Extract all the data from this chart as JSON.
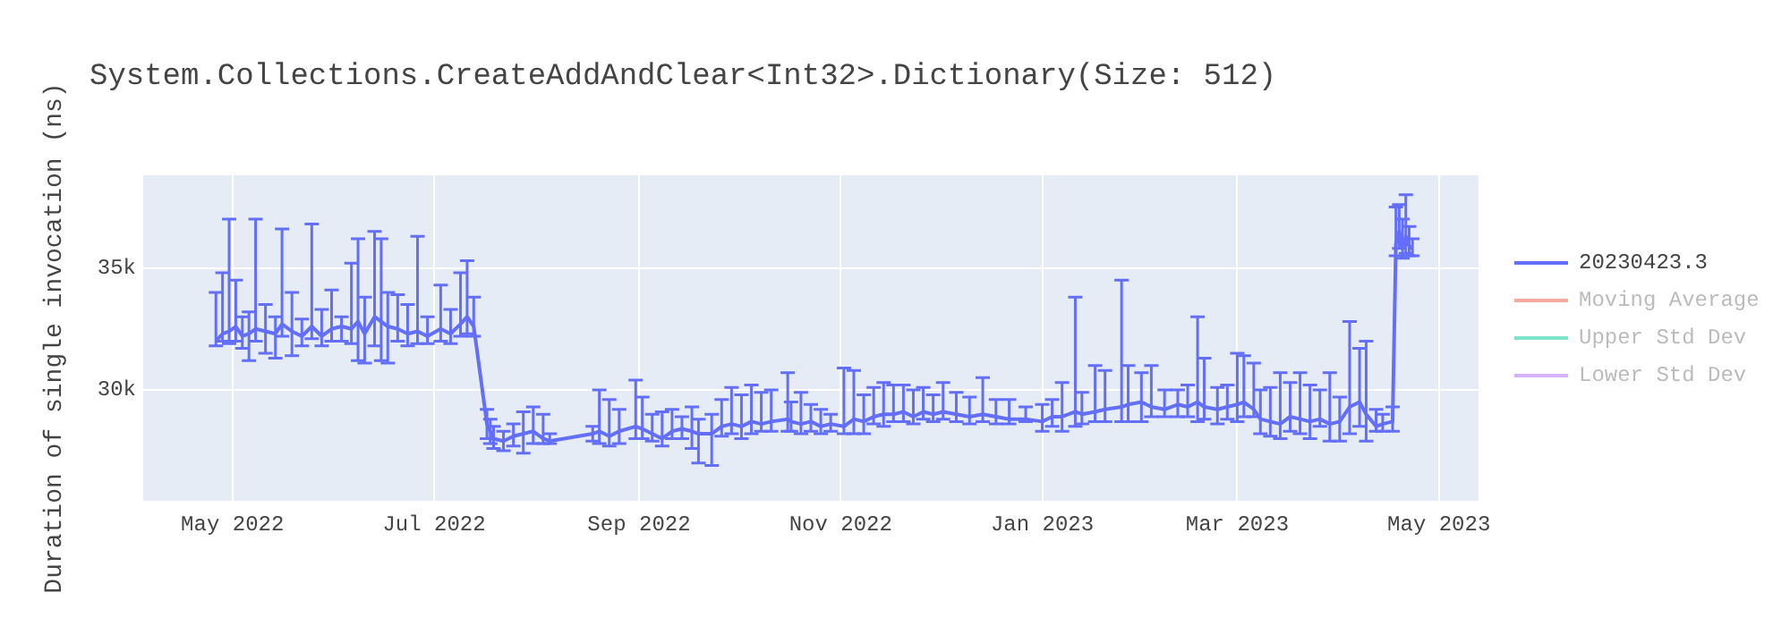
{
  "chart_data": {
    "type": "line",
    "title": "System.Collections.CreateAddAndClear<Int32>.Dictionary(Size: 512)",
    "ylabel": "Duration of single invocation (ns)",
    "xlim": [
      "2022-04-04",
      "2023-05-13"
    ],
    "xticks": [
      {
        "value": "2022-05-01",
        "label": "May 2022"
      },
      {
        "value": "2022-07-01",
        "label": "Jul 2022"
      },
      {
        "value": "2022-09-01",
        "label": "Sep 2022"
      },
      {
        "value": "2022-11-01",
        "label": "Nov 2022"
      },
      {
        "value": "2023-01-01",
        "label": "Jan 2023"
      },
      {
        "value": "2023-03-01",
        "label": "Mar 2023"
      },
      {
        "value": "2023-05-01",
        "label": "May 2023"
      }
    ],
    "ylim": [
      25450,
      38800
    ],
    "yticks": [
      {
        "value": 30000,
        "label": "30k"
      },
      {
        "value": 35000,
        "label": "35k"
      }
    ],
    "grid": true,
    "legend": "right",
    "x": [
      "2022-04-26",
      "2022-04-28",
      "2022-04-30",
      "2022-05-02",
      "2022-05-04",
      "2022-05-06",
      "2022-05-08",
      "2022-05-11",
      "2022-05-14",
      "2022-05-16",
      "2022-05-19",
      "2022-05-22",
      "2022-05-25",
      "2022-05-28",
      "2022-05-31",
      "2022-06-03",
      "2022-06-06",
      "2022-06-08",
      "2022-06-10",
      "2022-06-13",
      "2022-06-15",
      "2022-06-17",
      "2022-06-20",
      "2022-06-23",
      "2022-06-26",
      "2022-06-29",
      "2022-07-03",
      "2022-07-06",
      "2022-07-09",
      "2022-07-11",
      "2022-07-13",
      "2022-07-17",
      "2022-07-18",
      "2022-07-19",
      "2022-07-22",
      "2022-07-25",
      "2022-07-28",
      "2022-07-31",
      "2022-08-03",
      "2022-08-05",
      "2022-08-18",
      "2022-08-20",
      "2022-08-23",
      "2022-08-26",
      "2022-08-31",
      "2022-09-02",
      "2022-09-05",
      "2022-09-08",
      "2022-09-11",
      "2022-09-14",
      "2022-09-17",
      "2022-09-19",
      "2022-09-23",
      "2022-09-26",
      "2022-09-29",
      "2022-10-02",
      "2022-10-05",
      "2022-10-08",
      "2022-10-11",
      "2022-10-16",
      "2022-10-17",
      "2022-10-20",
      "2022-10-23",
      "2022-10-26",
      "2022-10-29",
      "2022-11-02",
      "2022-11-05",
      "2022-11-08",
      "2022-11-11",
      "2022-11-14",
      "2022-11-17",
      "2022-11-20",
      "2022-11-23",
      "2022-11-26",
      "2022-11-29",
      "2022-12-02",
      "2022-12-06",
      "2022-12-10",
      "2022-12-14",
      "2022-12-18",
      "2022-12-22",
      "2022-12-27",
      "2023-01-01",
      "2023-01-04",
      "2023-01-07",
      "2023-01-11",
      "2023-01-13",
      "2023-01-17",
      "2023-01-20",
      "2023-01-25",
      "2023-01-27",
      "2023-01-31",
      "2023-02-03",
      "2023-02-07",
      "2023-02-11",
      "2023-02-14",
      "2023-02-17",
      "2023-02-19",
      "2023-02-23",
      "2023-02-26",
      "2023-03-01",
      "2023-03-03",
      "2023-03-06",
      "2023-03-08",
      "2023-03-11",
      "2023-03-14",
      "2023-03-17",
      "2023-03-20",
      "2023-03-23",
      "2023-03-26",
      "2023-03-29",
      "2023-04-01",
      "2023-04-04",
      "2023-04-07",
      "2023-04-09",
      "2023-04-12",
      "2023-04-14",
      "2023-04-17",
      "2023-04-18",
      "2023-04-19",
      "2023-04-20",
      "2023-04-21",
      "2023-04-22",
      "2023-04-23"
    ],
    "series": [
      {
        "name": "20230423.3",
        "color": "#636efa",
        "values": [
          32000,
          32300,
          32400,
          32600,
          32200,
          32300,
          32500,
          32400,
          32300,
          32700,
          32400,
          32200,
          32600,
          32200,
          32500,
          32600,
          32500,
          32800,
          32300,
          33000,
          32800,
          32600,
          32500,
          32300,
          32400,
          32200,
          32500,
          32300,
          32700,
          33000,
          32600,
          28600,
          28300,
          28000,
          27900,
          28100,
          28200,
          28300,
          28000,
          27900,
          28200,
          28300,
          28100,
          28300,
          28500,
          28400,
          28200,
          28000,
          28300,
          28400,
          28300,
          28200,
          28200,
          28500,
          28600,
          28500,
          28700,
          28600,
          28700,
          28800,
          28700,
          28600,
          28700,
          28500,
          28600,
          28500,
          28800,
          28700,
          28900,
          29000,
          29000,
          29100,
          28900,
          29100,
          29000,
          29100,
          29000,
          28900,
          29000,
          28900,
          28800,
          28800,
          28700,
          28900,
          28900,
          29100,
          29000,
          29100,
          29200,
          29300,
          29400,
          29500,
          29300,
          29200,
          29400,
          29300,
          29500,
          29300,
          29200,
          29300,
          29400,
          29500,
          29200,
          28800,
          28700,
          28600,
          28900,
          28800,
          28700,
          28800,
          28600,
          28700,
          29300,
          29500,
          29000,
          28500,
          28600,
          28700,
          36000,
          36500,
          35800,
          36300,
          35900,
          35800
        ],
        "errors": [
          [
            31800,
            34000
          ],
          [
            32000,
            34800
          ],
          [
            31900,
            37000
          ],
          [
            32000,
            34500
          ],
          [
            31700,
            33000
          ],
          [
            31200,
            33200
          ],
          [
            32000,
            37000
          ],
          [
            31500,
            33500
          ],
          [
            31300,
            33000
          ],
          [
            32200,
            36600
          ],
          [
            31400,
            34000
          ],
          [
            31800,
            32900
          ],
          [
            32100,
            36800
          ],
          [
            31800,
            33300
          ],
          [
            32000,
            34100
          ],
          [
            32000,
            33000
          ],
          [
            31900,
            35200
          ],
          [
            31200,
            36200
          ],
          [
            31100,
            33800
          ],
          [
            31800,
            36500
          ],
          [
            31200,
            36200
          ],
          [
            31100,
            34000
          ],
          [
            32000,
            33900
          ],
          [
            31800,
            33500
          ],
          [
            31900,
            36300
          ],
          [
            31900,
            33000
          ],
          [
            32000,
            34300
          ],
          [
            31900,
            33300
          ],
          [
            32200,
            34800
          ],
          [
            32300,
            35300
          ],
          [
            32200,
            33800
          ],
          [
            28000,
            29200
          ],
          [
            27800,
            28800
          ],
          [
            27600,
            28500
          ],
          [
            27500,
            28300
          ],
          [
            27700,
            28600
          ],
          [
            27400,
            29100
          ],
          [
            27800,
            29300
          ],
          [
            27800,
            29000
          ],
          [
            27800,
            28200
          ],
          [
            27900,
            28500
          ],
          [
            27800,
            30000
          ],
          [
            27700,
            29600
          ],
          [
            27800,
            29200
          ],
          [
            28000,
            30400
          ],
          [
            28000,
            29700
          ],
          [
            27900,
            29000
          ],
          [
            27700,
            29100
          ],
          [
            28000,
            29200
          ],
          [
            28000,
            28900
          ],
          [
            27600,
            29300
          ],
          [
            27000,
            28800
          ],
          [
            26900,
            29000
          ],
          [
            28100,
            29600
          ],
          [
            28200,
            30100
          ],
          [
            28000,
            29800
          ],
          [
            28200,
            30200
          ],
          [
            28300,
            29900
          ],
          [
            28300,
            30000
          ],
          [
            28300,
            30700
          ],
          [
            28300,
            29500
          ],
          [
            28200,
            29900
          ],
          [
            28300,
            29400
          ],
          [
            28200,
            29200
          ],
          [
            28300,
            29000
          ],
          [
            28200,
            30900
          ],
          [
            28200,
            30800
          ],
          [
            28200,
            29800
          ],
          [
            28600,
            30100
          ],
          [
            28500,
            30300
          ],
          [
            28700,
            30200
          ],
          [
            28700,
            30200
          ],
          [
            28600,
            30000
          ],
          [
            28800,
            30100
          ],
          [
            28700,
            29800
          ],
          [
            28800,
            30300
          ],
          [
            28700,
            29900
          ],
          [
            28600,
            29700
          ],
          [
            28700,
            30500
          ],
          [
            28600,
            29600
          ],
          [
            28600,
            29600
          ],
          [
            28700,
            29300
          ],
          [
            28300,
            29400
          ],
          [
            28500,
            29600
          ],
          [
            28300,
            30300
          ],
          [
            28500,
            33800
          ],
          [
            28600,
            29900
          ],
          [
            28700,
            31000
          ],
          [
            28700,
            30800
          ],
          [
            28700,
            34500
          ],
          [
            28700,
            31000
          ],
          [
            28700,
            30700
          ],
          [
            28900,
            31000
          ],
          [
            28900,
            30000
          ],
          [
            28900,
            30000
          ],
          [
            28900,
            30200
          ],
          [
            28700,
            33000
          ],
          [
            28800,
            31300
          ],
          [
            28600,
            30100
          ],
          [
            28800,
            30200
          ],
          [
            28700,
            31500
          ],
          [
            28900,
            31400
          ],
          [
            28900,
            31100
          ],
          [
            28200,
            30000
          ],
          [
            28100,
            30100
          ],
          [
            28000,
            30700
          ],
          [
            28300,
            30300
          ],
          [
            28200,
            30700
          ],
          [
            28000,
            30200
          ],
          [
            28500,
            30000
          ],
          [
            27900,
            30700
          ],
          [
            27900,
            29700
          ],
          [
            28200,
            32800
          ],
          [
            28500,
            31700
          ],
          [
            27900,
            32000
          ],
          [
            28300,
            29200
          ],
          [
            28300,
            29000
          ],
          [
            28300,
            29300
          ],
          [
            35500,
            37500
          ],
          [
            35800,
            37600
          ],
          [
            35400,
            37000
          ],
          [
            35600,
            38000
          ],
          [
            35500,
            36700
          ],
          [
            35500,
            36200
          ]
        ]
      },
      {
        "name": "Moving Average",
        "color": "#ef553b",
        "values": [
          null,
          null,
          null,
          null,
          null,
          null,
          null,
          null,
          null,
          null,
          null,
          null,
          null,
          null,
          null,
          null,
          null,
          null,
          null,
          null,
          null,
          null,
          null,
          null,
          null,
          null,
          null,
          null,
          null,
          null,
          null,
          null,
          null,
          null,
          null,
          null,
          null,
          null,
          null,
          null,
          null,
          null,
          null,
          null,
          null,
          null,
          null,
          null,
          null,
          null,
          null,
          null,
          null,
          null,
          null,
          null,
          null,
          null,
          null,
          null,
          null,
          null,
          null,
          null,
          null,
          null,
          null,
          null,
          null,
          null,
          null,
          null,
          null,
          null,
          null,
          null,
          null,
          null,
          null,
          null,
          null,
          null,
          null,
          null,
          null,
          null,
          null,
          null,
          null,
          null,
          null,
          null,
          null,
          null,
          null,
          null,
          null,
          null,
          null,
          null,
          null,
          null,
          null,
          null,
          null,
          null,
          null,
          null,
          null,
          null,
          null,
          null,
          null,
          null,
          null,
          null,
          null,
          null,
          null,
          null,
          null,
          null,
          null,
          null
        ]
      },
      {
        "name": "Upper Std Dev",
        "color": "#00cc96",
        "values": [
          null,
          null,
          null,
          null,
          null,
          null,
          null,
          null,
          null,
          null,
          null,
          null,
          null,
          null,
          null,
          null,
          null,
          null,
          null,
          null,
          null,
          null,
          null,
          null,
          null,
          null,
          null,
          null,
          null,
          null,
          null,
          null,
          null,
          null,
          null,
          null,
          null,
          null,
          null,
          null,
          null,
          null,
          null,
          null,
          null,
          null,
          null,
          null,
          null,
          null,
          null,
          null,
          null,
          null,
          null,
          null,
          null,
          null,
          null,
          null,
          null,
          null,
          null,
          null,
          null,
          null,
          null,
          null,
          null,
          null,
          null,
          null,
          null,
          null,
          null,
          null,
          null,
          null,
          null,
          null,
          null,
          null,
          null,
          null,
          null,
          null,
          null,
          null,
          null,
          null,
          null,
          null,
          null,
          null,
          null,
          null,
          null,
          null,
          null,
          null,
          null,
          null,
          null,
          null,
          null,
          null,
          null,
          null,
          null,
          null,
          null,
          null,
          null,
          null,
          null,
          null,
          null,
          null,
          null,
          null,
          null,
          null,
          null,
          null
        ]
      },
      {
        "name": "Lower Std Dev",
        "color": "#ab63fa",
        "values": [
          null,
          null,
          null,
          null,
          null,
          null,
          null,
          null,
          null,
          null,
          null,
          null,
          null,
          null,
          null,
          null,
          null,
          null,
          null,
          null,
          null,
          null,
          null,
          null,
          null,
          null,
          null,
          null,
          null,
          null,
          null,
          null,
          null,
          null,
          null,
          null,
          null,
          null,
          null,
          null,
          null,
          null,
          null,
          null,
          null,
          null,
          null,
          null,
          null,
          null,
          null,
          null,
          null,
          null,
          null,
          null,
          null,
          null,
          null,
          null,
          null,
          null,
          null,
          null,
          null,
          null,
          null,
          null,
          null,
          null,
          null,
          null,
          null,
          null,
          null,
          null,
          null,
          null,
          null,
          null,
          null,
          null,
          null,
          null,
          null,
          null,
          null,
          null,
          null,
          null,
          null,
          null,
          null,
          null,
          null,
          null,
          null,
          null,
          null,
          null,
          null,
          null,
          null,
          null,
          null,
          null,
          null,
          null,
          null,
          null,
          null,
          null,
          null,
          null,
          null,
          null,
          null,
          null,
          null,
          null,
          null,
          null,
          null,
          null
        ]
      }
    ]
  }
}
